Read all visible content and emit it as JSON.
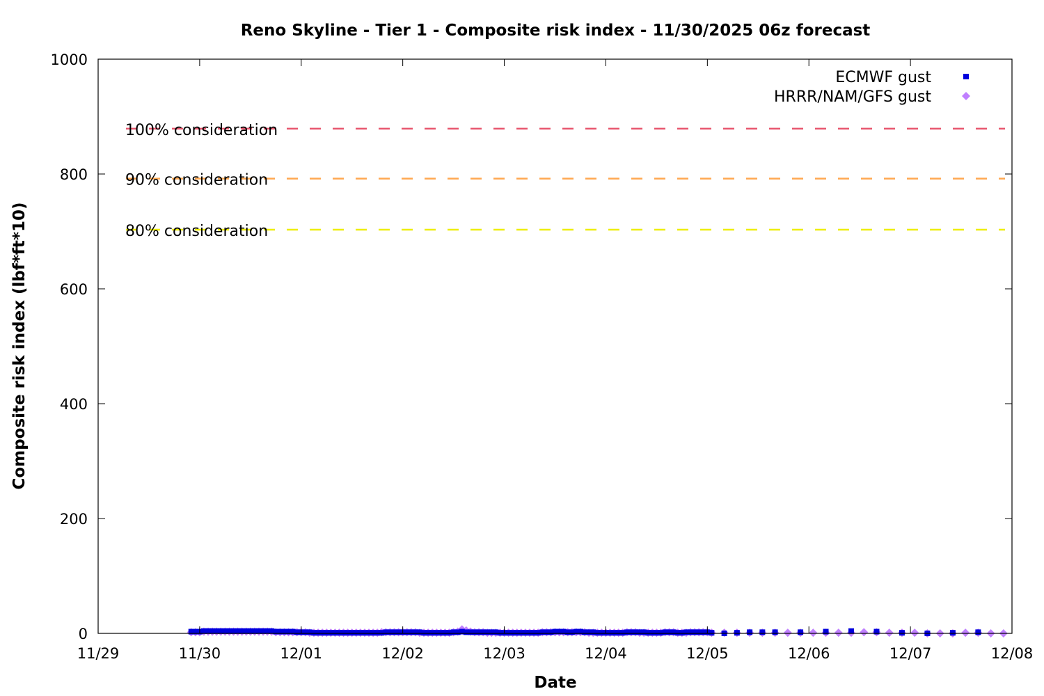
{
  "chart_data": {
    "type": "scatter",
    "title": "Reno Skyline - Tier 1 - Composite risk index - 11/30/2025 06z forecast",
    "xlabel": "Date",
    "ylabel": "Composite risk index (lbf*ft*10)",
    "xlim": [
      "11/29",
      "12/08"
    ],
    "ylim": [
      0,
      1000
    ],
    "x_ticks": [
      "11/29",
      "11/30",
      "12/01",
      "12/02",
      "12/03",
      "12/04",
      "12/05",
      "12/06",
      "12/07",
      "12/08"
    ],
    "y_ticks": [
      "0",
      "200",
      "400",
      "600",
      "800",
      "1000"
    ],
    "grid": false,
    "legend_position": "top-right",
    "thresholds": [
      {
        "label": "100% consideration",
        "value": 879,
        "color": "#e8566e"
      },
      {
        "label": "90% consideration",
        "value": 792,
        "color": "#ffa850"
      },
      {
        "label": "80% consideration",
        "value": 703,
        "color": "#eeee00"
      }
    ],
    "series": [
      {
        "name": "ECMWF gust",
        "marker": "square",
        "color": "#0000dd",
        "segments": [
          {
            "start": "11/29 22:00",
            "step_hours": 1,
            "values": [
              3,
              3,
              3,
              4,
              4,
              4,
              4,
              4,
              4,
              4,
              4,
              4,
              4,
              4,
              4,
              4,
              4,
              4,
              4,
              4,
              3,
              3,
              3,
              3,
              3,
              2,
              2,
              2,
              2,
              1,
              1,
              1,
              1,
              1,
              1,
              1,
              1,
              1,
              1,
              1,
              1,
              1,
              1,
              1,
              1,
              1,
              2,
              2,
              2,
              2,
              2,
              2,
              2,
              2,
              2,
              1,
              1,
              1,
              1,
              1,
              1,
              1,
              2,
              2,
              3,
              2,
              2,
              2,
              2,
              2,
              2,
              2,
              2,
              1,
              1,
              1,
              1,
              1,
              1,
              1,
              1,
              1,
              1,
              2,
              2,
              2,
              3,
              3,
              3,
              2,
              2,
              3,
              3,
              2,
              2,
              2,
              1,
              1,
              1,
              1,
              1,
              1,
              1,
              2,
              2,
              2,
              2,
              2,
              1,
              1,
              1,
              1,
              2,
              2,
              2,
              1,
              1,
              2,
              2,
              2,
              2,
              2,
              2
            ]
          },
          {
            "start": "12/05 01:00",
            "step_hours": 3,
            "values": [
              1,
              0,
              1,
              2,
              2,
              2,
              null,
              2,
              null,
              3,
              null,
              4,
              null,
              3,
              null,
              1,
              null,
              0,
              null,
              1,
              null,
              2,
              null,
              null
            ]
          }
        ]
      },
      {
        "name": "HRRR/NAM/GFS gust",
        "marker": "diamond",
        "color": "#c080ff",
        "segments": [
          {
            "start": "11/29 22:00",
            "step_hours": 1,
            "values": [
              2,
              2,
              2,
              3,
              3,
              3,
              3,
              3,
              3,
              3,
              3,
              3,
              3,
              3,
              3,
              3,
              3,
              3,
              3,
              3,
              2,
              2,
              2,
              2,
              2,
              2,
              2,
              2,
              1,
              1,
              1,
              1,
              1,
              1,
              1,
              1,
              1,
              1,
              1,
              1,
              1,
              1,
              1,
              1,
              1,
              2,
              2,
              2,
              2,
              2,
              2,
              2,
              2,
              2,
              1,
              1,
              1,
              1,
              1,
              1,
              1,
              1,
              2,
              3,
              7,
              5,
              3,
              2,
              2,
              2,
              1,
              1,
              1,
              1,
              1,
              1,
              1,
              1,
              1,
              1,
              1,
              1,
              1,
              2,
              2,
              2,
              2,
              2,
              2,
              2,
              2,
              2,
              2,
              2,
              1,
              1,
              1,
              1,
              1,
              1,
              1,
              1,
              1,
              2,
              2,
              2,
              1,
              1,
              1,
              1,
              1,
              1,
              2,
              2,
              2,
              1,
              1,
              1,
              2,
              2,
              2,
              2,
              2
            ]
          },
          {
            "start": "12/05 01:00",
            "step_hours": 3,
            "values": [
              1,
              1,
              1,
              1,
              1,
              1,
              1,
              1,
              1,
              1,
              1,
              1,
              2,
              2,
              1,
              1,
              1,
              0,
              0,
              0,
              1,
              1,
              0,
              0
            ]
          }
        ]
      }
    ]
  }
}
